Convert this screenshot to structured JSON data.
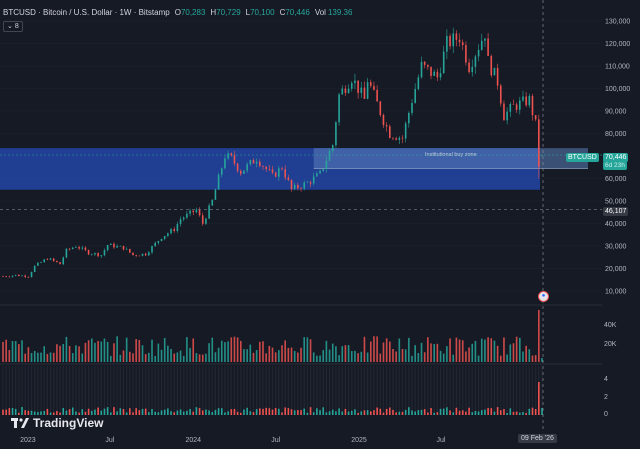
{
  "header": {
    "title": "BTCUSD · Bitcoin / U.S. Dollar · 1W · Bitstamp",
    "open_label": "O",
    "open": "70,283",
    "high_label": "H",
    "high": "70,729",
    "low_label": "L",
    "low": "70,100",
    "close_label": "C",
    "close": "70,446",
    "vol_label": "Vol",
    "vol": "139.36"
  },
  "indicator_badge": {
    "count": "8"
  },
  "price_axis": [
    "130,000",
    "120,000",
    "110,000",
    "100,000",
    "90,000",
    "80,000",
    "70,000",
    "60,000",
    "50,000",
    "40,000",
    "30,000",
    "20,000",
    "10,000"
  ],
  "volume_axis": [
    "40K",
    "20K"
  ],
  "osc_axis": [
    "4",
    "2",
    "0"
  ],
  "time_axis": [
    "2023",
    "Jul",
    "2024",
    "Jul",
    "2025",
    "Jul"
  ],
  "zone": {
    "label": "Institutional buy zone"
  },
  "last_price": {
    "symbol": "BTCUSD",
    "price": "70,446",
    "countdown": "6d 23h"
  },
  "crosshair": {
    "price": "46,107",
    "date": "09 Feb '26"
  },
  "brand": {
    "name": "TradingView"
  },
  "colors": {
    "up": "#26a69a",
    "down": "#ef5350",
    "zone": "#2962ff",
    "background": "#161a25"
  },
  "chart_data": {
    "type": "candlestick",
    "symbol": "BTCUSD",
    "interval": "1W",
    "x_range": [
      "2022-11",
      "2026-02"
    ],
    "y_range": [
      0,
      130000
    ],
    "zone": {
      "y_low": 55000,
      "y_high": 73500,
      "label": "Institutional buy zone"
    },
    "last_close": 70446,
    "price_path": [
      [
        "2022-11-07",
        16500
      ],
      [
        "2022-12-05",
        17000
      ],
      [
        "2023-01-02",
        16600
      ],
      [
        "2023-01-16",
        21000
      ],
      [
        "2023-02-13",
        24500
      ],
      [
        "2023-03-13",
        22000
      ],
      [
        "2023-03-27",
        28000
      ],
      [
        "2023-04-17",
        30000
      ],
      [
        "2023-05-15",
        27000
      ],
      [
        "2023-06-12",
        26000
      ],
      [
        "2023-06-26",
        30500
      ],
      [
        "2023-07-31",
        29200
      ],
      [
        "2023-08-21",
        26000
      ],
      [
        "2023-09-18",
        26500
      ],
      [
        "2023-10-23",
        34000
      ],
      [
        "2023-11-20",
        37500
      ],
      [
        "2023-12-04",
        42000
      ],
      [
        "2024-01-08",
        46000
      ],
      [
        "2024-01-22",
        40000
      ],
      [
        "2024-02-12",
        50000
      ],
      [
        "2024-03-11",
        70000
      ],
      [
        "2024-03-25",
        69000
      ],
      [
        "2024-04-15",
        63000
      ],
      [
        "2024-05-20",
        69000
      ],
      [
        "2024-06-24",
        61000
      ],
      [
        "2024-07-15",
        65000
      ],
      [
        "2024-08-05",
        55000
      ],
      [
        "2024-09-09",
        58000
      ],
      [
        "2024-10-07",
        62000
      ],
      [
        "2024-11-04",
        75000
      ],
      [
        "2024-11-18",
        97000
      ],
      [
        "2024-12-16",
        105000
      ],
      [
        "2025-01-13",
        95000
      ],
      [
        "2025-01-20",
        104000
      ],
      [
        "2025-02-24",
        86000
      ],
      [
        "2025-03-10",
        80000
      ],
      [
        "2025-04-07",
        78000
      ],
      [
        "2025-04-28",
        95000
      ],
      [
        "2025-05-19",
        110000
      ],
      [
        "2025-06-23",
        105000
      ],
      [
        "2025-07-14",
        120000
      ],
      [
        "2025-08-11",
        123000
      ],
      [
        "2025-09-01",
        110000
      ],
      [
        "2025-10-06",
        125000
      ],
      [
        "2025-10-13",
        112000
      ],
      [
        "2025-11-03",
        103000
      ],
      [
        "2025-11-17",
        88000
      ],
      [
        "2025-12-08",
        92000
      ],
      [
        "2026-01-12",
        95000
      ],
      [
        "2026-01-26",
        84000
      ],
      [
        "2026-02-02",
        66000
      ],
      [
        "2026-02-09",
        70446
      ]
    ]
  }
}
